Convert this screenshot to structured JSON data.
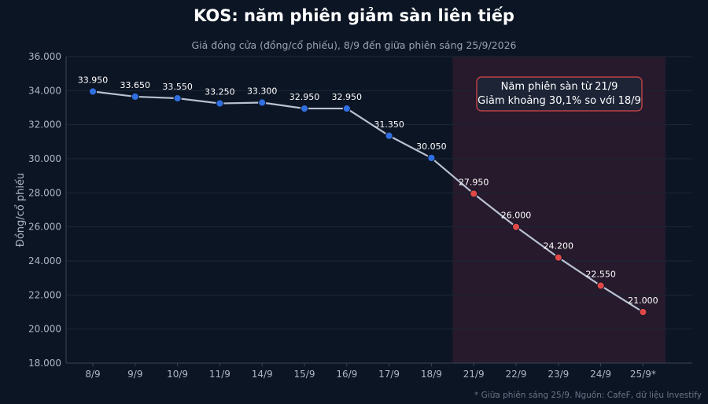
{
  "chart_data": {
    "type": "line",
    "title": "KOS: năm phiên giảm sàn liên tiếp",
    "subtitle": "Giá đóng cửa (đồng/cổ phiếu), 8/9 đến giữa phiên sáng 25/9/2026",
    "ylabel": "Đồng/cổ phiếu",
    "xlabel": "",
    "categories": [
      "8/9",
      "9/9",
      "10/9",
      "11/9",
      "14/9",
      "15/9",
      "16/9",
      "17/9",
      "18/9",
      "21/9",
      "22/9",
      "23/9",
      "24/9",
      "25/9*"
    ],
    "values": [
      33950,
      33650,
      33550,
      33250,
      33300,
      32950,
      32950,
      31350,
      30050,
      27950,
      26000,
      24200,
      22550,
      21000
    ],
    "value_labels": [
      "33.950",
      "33.650",
      "33.550",
      "33.250",
      "33.300",
      "32.950",
      "32.950",
      "31.350",
      "30.050",
      "27.950",
      "26.000",
      "24.200",
      "22.550",
      "21.000"
    ],
    "ylim": [
      18000,
      36000
    ],
    "yticks": [
      "18.000",
      "20.000",
      "22.000",
      "24.000",
      "26.000",
      "28.000",
      "30.000",
      "32.000",
      "34.000",
      "36.000"
    ],
    "ytick_values": [
      18000,
      20000,
      22000,
      24000,
      26000,
      28000,
      30000,
      32000,
      34000,
      36000
    ],
    "highlight_start_index": 9,
    "annotation": [
      "Năm phiên sàn từ 21/9",
      "Giảm khoảng 30,1% so với 18/9"
    ],
    "grid": true,
    "footnote": "* Giữa phiên sáng 25/9. Nguồn: CafeF, dữ liệu Investify",
    "colors": {
      "background": "#0c1524",
      "line": "#b9c2d3",
      "normal_marker": "#2f6fe0",
      "floor_marker": "#e04848",
      "highlight_band": "#261a2c",
      "annotation_border": "#e04848",
      "annotation_fill": "#1c2436",
      "grid": "#1b2638"
    }
  }
}
